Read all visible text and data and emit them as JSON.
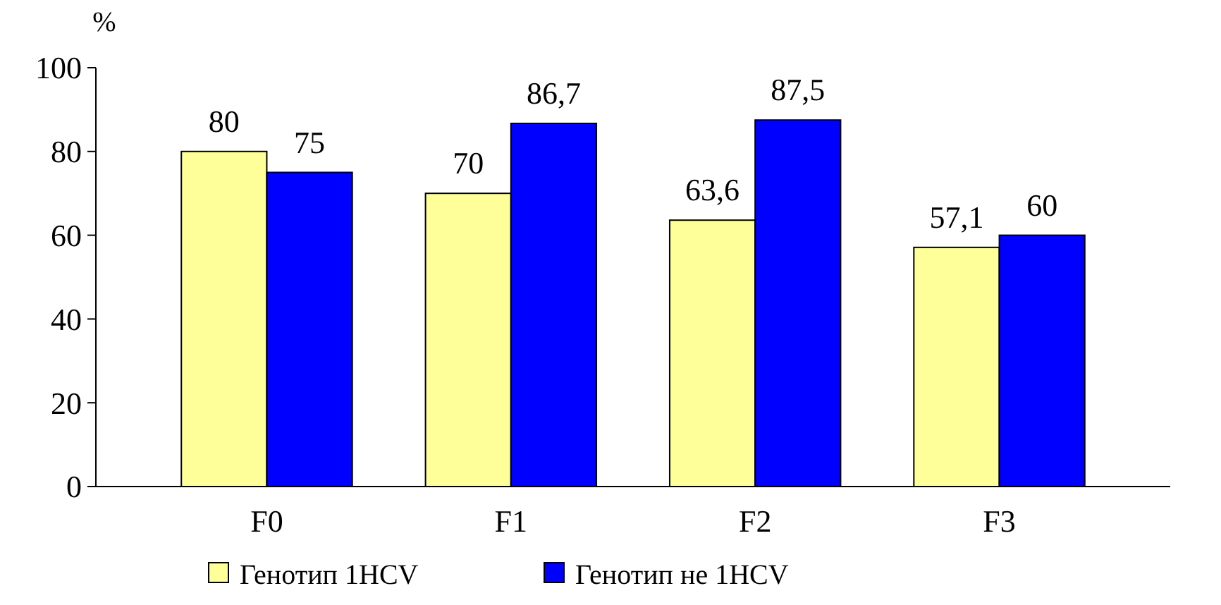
{
  "chart_data": {
    "type": "bar",
    "ylabel": "%",
    "categories": [
      "F0",
      "F1",
      "F2",
      "F3"
    ],
    "series": [
      {
        "name": "Генотип 1HCV",
        "color": "#ffff99",
        "values": [
          80,
          70,
          63.6,
          57.1
        ],
        "value_labels": [
          "80",
          "70",
          "63,6",
          "57,1"
        ]
      },
      {
        "name": "Генотип не 1HCV",
        "color": "#0000ff",
        "values": [
          75,
          86.7,
          87.5,
          60
        ],
        "value_labels": [
          "75",
          "86,7",
          "87,5",
          "60"
        ]
      }
    ],
    "ylim": [
      0,
      100
    ],
    "yticks": [
      0,
      20,
      40,
      60,
      80,
      100
    ],
    "grid": false,
    "legend": "bottom"
  }
}
